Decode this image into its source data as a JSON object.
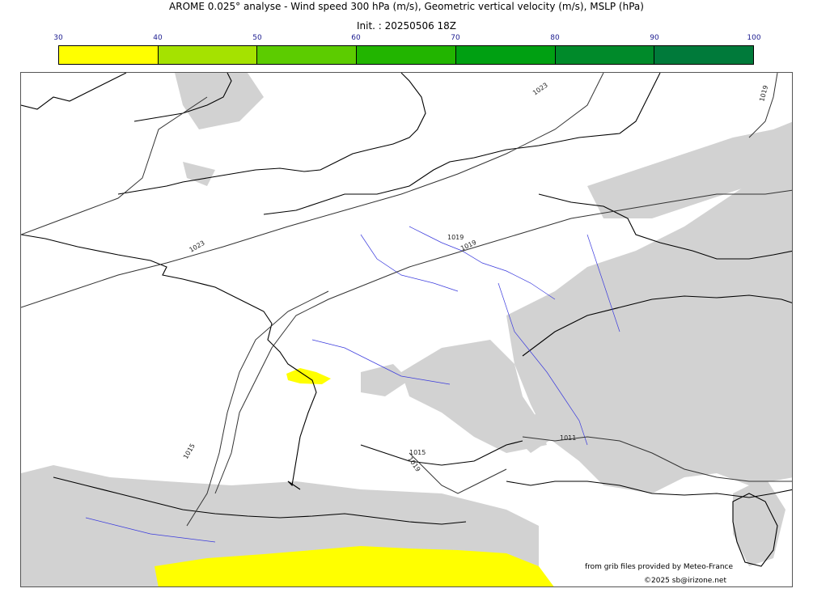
{
  "header": {
    "title": "AROME 0.025° analyse - Wind speed 300 hPa (m/s), Geometric vertical velocity (m/s), MSLP (hPa)",
    "init": "Init. : 20250506 18Z"
  },
  "colorbar": {
    "ticks": [
      "30",
      "40",
      "50",
      "60",
      "70",
      "80",
      "90",
      "100"
    ],
    "colors": [
      "#ffff00",
      "#a5e200",
      "#5ccc00",
      "#22b500",
      "#00a012",
      "#008a2a",
      "#007a3a"
    ]
  },
  "map": {
    "isobar_labels": [
      "1023",
      "1019",
      "1023",
      "1019",
      "1019",
      "1015",
      "1011",
      "1015",
      "1019"
    ],
    "colors": {
      "coast": "#000000",
      "rivers": "#3b3bdd",
      "vertical_velocity": "#d2d2d2",
      "wind_speed": "#ffff00"
    }
  },
  "credits": {
    "source": "from grib files provided by Meteo-France",
    "copyright": "©2025 sb@irizone.net"
  }
}
